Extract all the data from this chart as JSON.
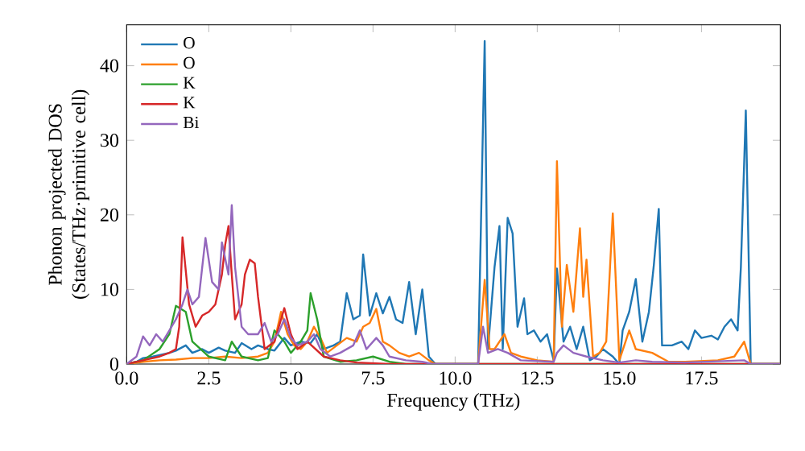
{
  "chart_data": {
    "type": "line",
    "xlabel": "Frequency (THz)",
    "ylabel": "Phonon projected DOS (States/THz·primitive cell)",
    "xlim": [
      0,
      19.9
    ],
    "ylim": [
      0,
      45.5
    ],
    "xticks": [
      {
        "value": 0,
        "label": "0.0"
      },
      {
        "value": 2.5,
        "label": "2.5"
      },
      {
        "value": 5,
        "label": "5.0"
      },
      {
        "value": 7.5,
        "label": "7.5"
      },
      {
        "value": 10,
        "label": "10.0"
      },
      {
        "value": 12.5,
        "label": "12.5"
      },
      {
        "value": 15,
        "label": "15.0"
      },
      {
        "value": 17.5,
        "label": "17.5"
      }
    ],
    "yticks": [
      0,
      10,
      20,
      30,
      40
    ],
    "legend": "top left",
    "series": [
      {
        "name": "O",
        "color": "#1f77b4",
        "x": [
          0,
          0.3,
          0.5,
          0.8,
          1.0,
          1.3,
          1.5,
          1.8,
          2.0,
          2.3,
          2.5,
          2.8,
          3.0,
          3.3,
          3.5,
          3.8,
          4.0,
          4.3,
          4.5,
          4.8,
          5.0,
          5.3,
          5.6,
          5.8,
          6.0,
          6.3,
          6.5,
          6.7,
          6.9,
          7.1,
          7.2,
          7.4,
          7.6,
          7.8,
          8.0,
          8.2,
          8.4,
          8.6,
          8.8,
          9.0,
          9.2,
          9.4,
          10.7,
          10.9,
          11.0,
          11.2,
          11.35,
          11.45,
          11.6,
          11.75,
          11.9,
          12.1,
          12.2,
          12.4,
          12.6,
          12.8,
          13.0,
          13.1,
          13.3,
          13.5,
          13.7,
          13.9,
          14.1,
          14.3,
          14.5,
          14.8,
          15.0,
          15.1,
          15.3,
          15.5,
          15.7,
          15.9,
          16.05,
          16.2,
          16.3,
          16.6,
          16.9,
          17.1,
          17.3,
          17.5,
          17.8,
          18.0,
          18.2,
          18.4,
          18.6,
          18.7,
          18.85,
          19.0,
          19.9
        ],
        "values": [
          0,
          0.3,
          0.8,
          1.0,
          1.2,
          1.5,
          1.8,
          2.5,
          1.5,
          2.0,
          1.5,
          2.2,
          1.8,
          1.5,
          2.8,
          2.0,
          2.5,
          2.0,
          1.8,
          3.5,
          2.5,
          3.0,
          2.8,
          4.0,
          2.0,
          2.5,
          3.0,
          9.5,
          6.0,
          6.5,
          14.7,
          6.5,
          9.5,
          6.8,
          9.0,
          6.0,
          5.5,
          11.0,
          4.0,
          10.0,
          1.0,
          0,
          0,
          43.3,
          2,
          13,
          18.5,
          2,
          19.6,
          17.5,
          5,
          8.8,
          4,
          4.5,
          3,
          4,
          0.5,
          12.8,
          3,
          5,
          2,
          5,
          0.5,
          1,
          2,
          1,
          0,
          4.5,
          7,
          11.4,
          3,
          7,
          13.3,
          20.8,
          2.5,
          2.5,
          3,
          2,
          4.5,
          3.5,
          3.8,
          3.3,
          5,
          6,
          4.5,
          13,
          34,
          0,
          0
        ]
      },
      {
        "name": "O",
        "color": "#ff7f0e",
        "x": [
          0,
          0.5,
          1.0,
          1.5,
          2.0,
          2.5,
          3.0,
          3.5,
          4.0,
          4.3,
          4.5,
          4.7,
          4.9,
          5.1,
          5.3,
          5.5,
          5.7,
          5.9,
          6.1,
          6.4,
          6.7,
          7.0,
          7.2,
          7.4,
          7.6,
          7.8,
          8.0,
          8.3,
          8.6,
          8.9,
          9.2,
          9.4,
          10.7,
          10.9,
          11.05,
          11.2,
          11.5,
          11.7,
          12.0,
          12.5,
          13.0,
          13.1,
          13.25,
          13.4,
          13.6,
          13.8,
          13.9,
          14.0,
          14.2,
          14.4,
          14.6,
          14.8,
          15.0,
          15.3,
          15.5,
          16.0,
          16.5,
          17.0,
          18.0,
          18.5,
          18.8,
          19.0,
          19.9
        ],
        "values": [
          0,
          0.3,
          0.5,
          0.6,
          0.8,
          0.8,
          1.0,
          0.8,
          1.0,
          1.5,
          3.0,
          7.0,
          4.0,
          2.5,
          2.0,
          3.0,
          5.0,
          3.5,
          1.5,
          2.5,
          3.5,
          3.0,
          5.0,
          5.5,
          7.4,
          3.0,
          2.5,
          1.5,
          1.0,
          1.5,
          0.5,
          0,
          0,
          11.3,
          2,
          2,
          4,
          1.5,
          1,
          0.5,
          0.3,
          27.2,
          5,
          13.3,
          7,
          18.2,
          9,
          14,
          1,
          1.5,
          3,
          20.2,
          0.5,
          4.5,
          2,
          1.5,
          0.3,
          0.3,
          0.5,
          1,
          3,
          0,
          0
        ]
      },
      {
        "name": "K",
        "color": "#2ca02c",
        "x": [
          0,
          0.5,
          1.0,
          1.3,
          1.5,
          1.8,
          2.0,
          2.5,
          3.0,
          3.2,
          3.5,
          4.0,
          4.3,
          4.5,
          4.8,
          5.0,
          5.3,
          5.5,
          5.6,
          5.8,
          6.0,
          6.5,
          7.0,
          7.5,
          8.0,
          8.5,
          19.9
        ],
        "values": [
          0,
          0.5,
          2,
          4,
          7.8,
          7,
          3,
          1,
          0.5,
          3,
          1,
          0.5,
          0.8,
          4.5,
          3,
          1.5,
          3,
          4.5,
          9.5,
          6,
          1,
          0.3,
          0.5,
          1,
          0.3,
          0,
          0
        ]
      },
      {
        "name": "K",
        "color": "#d62728",
        "x": [
          0,
          0.5,
          1.0,
          1.3,
          1.5,
          1.6,
          1.7,
          1.9,
          2.1,
          2.3,
          2.5,
          2.7,
          2.9,
          3.0,
          3.1,
          3.2,
          3.3,
          3.5,
          3.6,
          3.75,
          3.9,
          4.0,
          4.2,
          4.5,
          4.8,
          5.0,
          5.2,
          5.5,
          6.0,
          6.5,
          7.0,
          8.0,
          19.9
        ],
        "values": [
          0,
          0.5,
          1,
          1.5,
          2,
          5,
          17,
          8,
          5,
          6.5,
          7,
          8,
          12,
          16,
          18.5,
          12,
          6,
          8,
          12,
          14,
          13.5,
          9,
          2,
          3,
          7.5,
          4,
          2,
          3,
          1,
          0.5,
          0.2,
          0,
          0
        ]
      },
      {
        "name": "Bi",
        "color": "#9467bd",
        "x": [
          0,
          0.3,
          0.5,
          0.7,
          0.9,
          1.1,
          1.3,
          1.5,
          1.7,
          1.85,
          2.0,
          2.2,
          2.4,
          2.6,
          2.8,
          2.9,
          3.1,
          3.2,
          3.3,
          3.5,
          3.7,
          4.0,
          4.2,
          4.4,
          4.6,
          4.8,
          5.0,
          5.2,
          5.5,
          5.7,
          5.9,
          6.2,
          6.5,
          6.9,
          7.1,
          7.3,
          7.6,
          7.8,
          8.0,
          8.5,
          9.0,
          9.3,
          10.7,
          10.85,
          11.0,
          11.3,
          11.6,
          12.0,
          13.0,
          13.1,
          13.3,
          13.6,
          14.0,
          14.5,
          15.0,
          15.5,
          16.0,
          17.0,
          18.8,
          19.0,
          19.9
        ],
        "values": [
          0,
          1,
          3.7,
          2.5,
          4,
          3,
          4.5,
          6,
          8,
          10,
          8,
          9,
          16.9,
          11,
          10,
          16.3,
          12,
          21.3,
          13,
          5,
          4,
          4,
          5.5,
          3,
          4,
          6,
          3.5,
          2.5,
          3,
          4,
          2,
          1,
          1.5,
          2.5,
          4.5,
          2,
          3.5,
          2.5,
          1,
          0.5,
          0.3,
          0,
          0,
          5,
          1.5,
          2,
          1.5,
          0.5,
          0.3,
          1.5,
          2.5,
          1.5,
          1,
          0.5,
          0.2,
          0.5,
          0.3,
          0.2,
          0.5,
          0,
          0
        ]
      }
    ]
  }
}
